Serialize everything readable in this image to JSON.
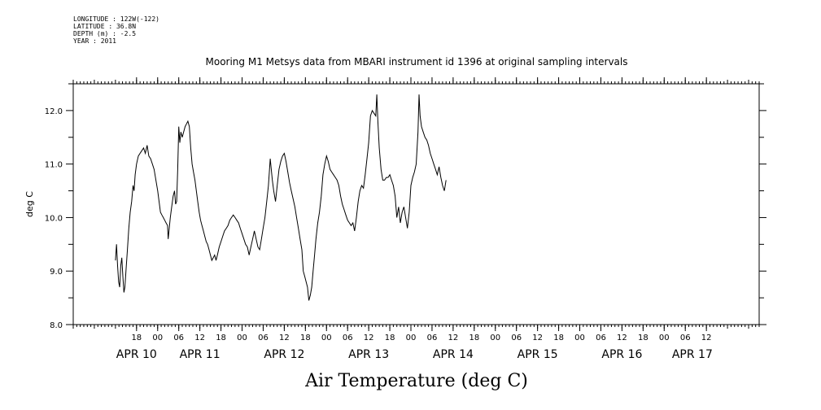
{
  "meta": {
    "longitude": "LONGITUDE : 122W(-122)",
    "latitude": "LATITUDE : 36.8N",
    "depth": "DEPTH (m) : -2.5",
    "year": "YEAR : 2011"
  },
  "chart_data": {
    "type": "line",
    "title": "Mooring M1 Metsys data from MBARI instrument id 1396 at original sampling intervals",
    "xlabel": "Air Temperature (deg C)",
    "ylabel": "deg C",
    "ylim": [
      8.0,
      12.5
    ],
    "yticks": [
      8.0,
      9.0,
      10.0,
      11.0,
      12.0
    ],
    "ytick_labels": [
      "8.0",
      "9.0",
      "10.0",
      "11.0",
      "12.0"
    ],
    "xlim": [
      "2011-04-09 12:00",
      "2011-04-17 15:00"
    ],
    "hour_ticks": [
      {
        "h": 30,
        "label": "18"
      },
      {
        "h": 36,
        "label": "00"
      },
      {
        "h": 42,
        "label": "06"
      },
      {
        "h": 48,
        "label": "12"
      },
      {
        "h": 54,
        "label": "18"
      },
      {
        "h": 60,
        "label": "00"
      },
      {
        "h": 66,
        "label": "06"
      },
      {
        "h": 72,
        "label": "12"
      },
      {
        "h": 78,
        "label": "18"
      },
      {
        "h": 84,
        "label": "00"
      },
      {
        "h": 90,
        "label": "06"
      },
      {
        "h": 96,
        "label": "12"
      },
      {
        "h": 102,
        "label": "18"
      },
      {
        "h": 108,
        "label": "00"
      },
      {
        "h": 114,
        "label": "06"
      },
      {
        "h": 120,
        "label": "12"
      },
      {
        "h": 126,
        "label": "18"
      },
      {
        "h": 132,
        "label": "00"
      },
      {
        "h": 138,
        "label": "06"
      },
      {
        "h": 144,
        "label": "12"
      },
      {
        "h": 150,
        "label": "18"
      },
      {
        "h": 156,
        "label": "00"
      },
      {
        "h": 162,
        "label": "06"
      },
      {
        "h": 168,
        "label": "12"
      },
      {
        "h": 174,
        "label": "18"
      },
      {
        "h": 180,
        "label": "00"
      },
      {
        "h": 186,
        "label": "06"
      },
      {
        "h": 192,
        "label": "12"
      }
    ],
    "date_labels": [
      {
        "h": 30,
        "label": "APR 10"
      },
      {
        "h": 48,
        "label": "APR 11"
      },
      {
        "h": 72,
        "label": "APR 12"
      },
      {
        "h": 96,
        "label": "APR 13"
      },
      {
        "h": 120,
        "label": "APR 14"
      },
      {
        "h": 144,
        "label": "APR 15"
      },
      {
        "h": 168,
        "label": "APR 16"
      },
      {
        "h": 188,
        "label": "APR 17"
      }
    ],
    "series": [
      {
        "color": "#000000",
        "points": [
          [
            24.0,
            9.2
          ],
          [
            24.3,
            9.5
          ],
          [
            24.6,
            9.1
          ],
          [
            24.9,
            8.8
          ],
          [
            25.2,
            8.7
          ],
          [
            25.5,
            9.1
          ],
          [
            25.8,
            9.25
          ],
          [
            26.1,
            8.9
          ],
          [
            26.4,
            8.6
          ],
          [
            26.7,
            8.7
          ],
          [
            27.0,
            9.0
          ],
          [
            27.4,
            9.4
          ],
          [
            27.8,
            9.8
          ],
          [
            28.2,
            10.1
          ],
          [
            28.6,
            10.3
          ],
          [
            29.0,
            10.6
          ],
          [
            29.3,
            10.5
          ],
          [
            29.6,
            10.8
          ],
          [
            30.0,
            11.0
          ],
          [
            30.5,
            11.15
          ],
          [
            31.0,
            11.2
          ],
          [
            31.5,
            11.25
          ],
          [
            32.0,
            11.3
          ],
          [
            32.5,
            11.2
          ],
          [
            33.0,
            11.35
          ],
          [
            33.5,
            11.15
          ],
          [
            34.0,
            11.1
          ],
          [
            34.5,
            11.0
          ],
          [
            35.0,
            10.9
          ],
          [
            35.5,
            10.7
          ],
          [
            36.0,
            10.5
          ],
          [
            36.4,
            10.3
          ],
          [
            36.8,
            10.1
          ],
          [
            37.2,
            10.05
          ],
          [
            37.6,
            10.0
          ],
          [
            38.0,
            9.95
          ],
          [
            38.4,
            9.9
          ],
          [
            38.8,
            9.85
          ],
          [
            39.0,
            9.6
          ],
          [
            39.3,
            9.8
          ],
          [
            39.6,
            10.0
          ],
          [
            40.0,
            10.2
          ],
          [
            40.4,
            10.4
          ],
          [
            40.8,
            10.5
          ],
          [
            41.1,
            10.25
          ],
          [
            41.4,
            10.3
          ],
          [
            41.7,
            10.9
          ],
          [
            42.0,
            11.7
          ],
          [
            42.3,
            11.4
          ],
          [
            42.6,
            11.6
          ],
          [
            43.0,
            11.5
          ],
          [
            43.4,
            11.6
          ],
          [
            43.8,
            11.7
          ],
          [
            44.2,
            11.75
          ],
          [
            44.6,
            11.8
          ],
          [
            45.0,
            11.7
          ],
          [
            45.4,
            11.3
          ],
          [
            45.8,
            11.0
          ],
          [
            46.2,
            10.85
          ],
          [
            46.6,
            10.7
          ],
          [
            47.0,
            10.5
          ],
          [
            47.4,
            10.3
          ],
          [
            47.8,
            10.1
          ],
          [
            48.2,
            9.95
          ],
          [
            48.6,
            9.85
          ],
          [
            49.0,
            9.75
          ],
          [
            49.4,
            9.65
          ],
          [
            49.8,
            9.55
          ],
          [
            50.2,
            9.5
          ],
          [
            50.6,
            9.4
          ],
          [
            51.0,
            9.3
          ],
          [
            51.4,
            9.2
          ],
          [
            51.8,
            9.25
          ],
          [
            52.2,
            9.3
          ],
          [
            52.6,
            9.2
          ],
          [
            53.0,
            9.3
          ],
          [
            53.5,
            9.45
          ],
          [
            54.0,
            9.55
          ],
          [
            54.5,
            9.65
          ],
          [
            55.0,
            9.75
          ],
          [
            55.5,
            9.8
          ],
          [
            56.0,
            9.85
          ],
          [
            56.5,
            9.95
          ],
          [
            57.0,
            10.0
          ],
          [
            57.5,
            10.05
          ],
          [
            58.0,
            10.0
          ],
          [
            58.5,
            9.95
          ],
          [
            59.0,
            9.9
          ],
          [
            59.5,
            9.8
          ],
          [
            60.0,
            9.7
          ],
          [
            60.5,
            9.6
          ],
          [
            61.0,
            9.5
          ],
          [
            61.5,
            9.45
          ],
          [
            62.0,
            9.3
          ],
          [
            62.5,
            9.45
          ],
          [
            63.0,
            9.6
          ],
          [
            63.5,
            9.75
          ],
          [
            64.0,
            9.6
          ],
          [
            64.5,
            9.45
          ],
          [
            65.0,
            9.4
          ],
          [
            65.5,
            9.6
          ],
          [
            66.0,
            9.8
          ],
          [
            66.5,
            10.0
          ],
          [
            67.0,
            10.3
          ],
          [
            67.5,
            10.6
          ],
          [
            68.0,
            11.1
          ],
          [
            68.3,
            10.9
          ],
          [
            68.6,
            10.7
          ],
          [
            69.0,
            10.5
          ],
          [
            69.5,
            10.3
          ],
          [
            70.0,
            10.6
          ],
          [
            70.5,
            10.9
          ],
          [
            71.0,
            11.05
          ],
          [
            71.5,
            11.15
          ],
          [
            72.0,
            11.2
          ],
          [
            72.5,
            11.05
          ],
          [
            73.0,
            10.85
          ],
          [
            73.5,
            10.65
          ],
          [
            74.0,
            10.5
          ],
          [
            74.5,
            10.35
          ],
          [
            75.0,
            10.2
          ],
          [
            75.5,
            10.0
          ],
          [
            76.0,
            9.8
          ],
          [
            76.5,
            9.6
          ],
          [
            77.0,
            9.4
          ],
          [
            77.4,
            9.0
          ],
          [
            77.8,
            8.9
          ],
          [
            78.2,
            8.8
          ],
          [
            78.6,
            8.7
          ],
          [
            79.0,
            8.45
          ],
          [
            79.4,
            8.55
          ],
          [
            79.8,
            8.7
          ],
          [
            80.2,
            9.0
          ],
          [
            80.6,
            9.3
          ],
          [
            81.0,
            9.6
          ],
          [
            81.5,
            9.9
          ],
          [
            82.0,
            10.1
          ],
          [
            82.5,
            10.4
          ],
          [
            83.0,
            10.8
          ],
          [
            83.5,
            11.0
          ],
          [
            84.0,
            11.15
          ],
          [
            84.5,
            11.05
          ],
          [
            85.0,
            10.9
          ],
          [
            85.5,
            10.85
          ],
          [
            86.0,
            10.8
          ],
          [
            86.5,
            10.75
          ],
          [
            87.0,
            10.7
          ],
          [
            87.5,
            10.6
          ],
          [
            88.0,
            10.4
          ],
          [
            88.5,
            10.25
          ],
          [
            89.0,
            10.15
          ],
          [
            89.5,
            10.05
          ],
          [
            90.0,
            9.95
          ],
          [
            90.5,
            9.9
          ],
          [
            91.0,
            9.85
          ],
          [
            91.5,
            9.9
          ],
          [
            92.0,
            9.75
          ],
          [
            92.5,
            10.0
          ],
          [
            93.0,
            10.3
          ],
          [
            93.5,
            10.5
          ],
          [
            94.0,
            10.6
          ],
          [
            94.5,
            10.55
          ],
          [
            95.0,
            10.8
          ],
          [
            95.5,
            11.1
          ],
          [
            96.0,
            11.4
          ],
          [
            96.5,
            11.9
          ],
          [
            97.0,
            12.0
          ],
          [
            97.5,
            11.95
          ],
          [
            98.0,
            11.9
          ],
          [
            98.3,
            12.3
          ],
          [
            98.6,
            11.8
          ],
          [
            99.0,
            11.3
          ],
          [
            99.5,
            10.9
          ],
          [
            100.0,
            10.7
          ],
          [
            100.5,
            10.7
          ],
          [
            101.0,
            10.75
          ],
          [
            101.5,
            10.75
          ],
          [
            102.0,
            10.8
          ],
          [
            102.5,
            10.7
          ],
          [
            103.0,
            10.6
          ],
          [
            103.5,
            10.4
          ],
          [
            104.0,
            10.0
          ],
          [
            104.5,
            10.2
          ],
          [
            105.0,
            9.9
          ],
          [
            105.5,
            10.1
          ],
          [
            106.0,
            10.2
          ],
          [
            106.5,
            10.0
          ],
          [
            107.0,
            9.8
          ],
          [
            107.5,
            10.1
          ],
          [
            108.0,
            10.6
          ],
          [
            108.5,
            10.75
          ],
          [
            109.0,
            10.85
          ],
          [
            109.5,
            11.0
          ],
          [
            110.0,
            11.6
          ],
          [
            110.3,
            12.3
          ],
          [
            110.6,
            11.9
          ],
          [
            111.0,
            11.7
          ],
          [
            111.5,
            11.6
          ],
          [
            112.0,
            11.5
          ],
          [
            112.5,
            11.45
          ],
          [
            113.0,
            11.35
          ],
          [
            113.5,
            11.2
          ],
          [
            114.0,
            11.1
          ],
          [
            114.5,
            11.0
          ],
          [
            115.0,
            10.9
          ],
          [
            115.5,
            10.8
          ],
          [
            116.0,
            10.95
          ],
          [
            116.5,
            10.75
          ],
          [
            117.0,
            10.6
          ],
          [
            117.5,
            10.5
          ],
          [
            118.0,
            10.7
          ]
        ]
      }
    ]
  }
}
